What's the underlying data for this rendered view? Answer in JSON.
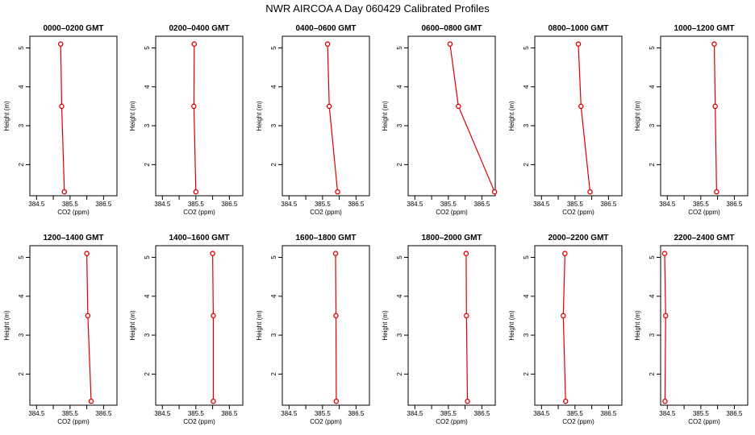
{
  "title": "NWR AIRCOA A  Day 060429  Calibrated Profiles",
  "chart_data": [
    {
      "type": "line",
      "title": "0000–0200 GMT",
      "xlabel": "CO2 (ppm)",
      "ylabel": "Height (m)",
      "xlim": [
        384.3,
        386.9
      ],
      "ylim": [
        1.2,
        5.3
      ],
      "x_ticks": [
        "384.5",
        "385.5",
        "386.5"
      ],
      "y_ticks": [
        "2",
        "3",
        "4",
        "5"
      ],
      "x": [
        385.22,
        385.25,
        385.33
      ],
      "y": [
        5.1,
        3.5,
        1.3
      ]
    },
    {
      "type": "line",
      "title": "0200–0400 GMT",
      "xlabel": "CO2 (ppm)",
      "ylabel": "Height (m)",
      "xlim": [
        384.3,
        386.9
      ],
      "ylim": [
        1.2,
        5.3
      ],
      "x_ticks": [
        "384.5",
        "385.5",
        "386.5"
      ],
      "y_ticks": [
        "2",
        "3",
        "4",
        "5"
      ],
      "x": [
        385.45,
        385.44,
        385.5
      ],
      "y": [
        5.1,
        3.5,
        1.3
      ]
    },
    {
      "type": "line",
      "title": "0400–0600 GMT",
      "xlabel": "CO2 (ppm)",
      "ylabel": "Height (m)",
      "xlim": [
        384.3,
        386.9
      ],
      "ylim": [
        1.2,
        5.3
      ],
      "x_ticks": [
        "384.5",
        "385.5",
        "386.5"
      ],
      "y_ticks": [
        "2",
        "3",
        "4",
        "5"
      ],
      "x": [
        385.65,
        385.7,
        385.95
      ],
      "y": [
        5.1,
        3.5,
        1.3
      ]
    },
    {
      "type": "line",
      "title": "0600–0800 GMT",
      "xlabel": "CO2 (ppm)",
      "ylabel": "Height (m)",
      "xlim": [
        384.3,
        386.9
      ],
      "ylim": [
        1.2,
        5.3
      ],
      "x_ticks": [
        "384.5",
        "385.5",
        "386.5"
      ],
      "y_ticks": [
        "2",
        "3",
        "4",
        "5"
      ],
      "x": [
        385.55,
        385.8,
        386.88
      ],
      "y": [
        5.1,
        3.5,
        1.3
      ]
    },
    {
      "type": "line",
      "title": "0800–1000 GMT",
      "xlabel": "CO2 (ppm)",
      "ylabel": "Height (m)",
      "xlim": [
        384.3,
        386.9
      ],
      "ylim": [
        1.2,
        5.3
      ],
      "x_ticks": [
        "384.5",
        "385.5",
        "386.5"
      ],
      "y_ticks": [
        "2",
        "3",
        "4",
        "5"
      ],
      "x": [
        385.6,
        385.68,
        385.95
      ],
      "y": [
        5.1,
        3.5,
        1.3
      ]
    },
    {
      "type": "line",
      "title": "1000–1200 GMT",
      "xlabel": "CO2 (ppm)",
      "ylabel": "Height (m)",
      "xlim": [
        384.3,
        386.9
      ],
      "ylim": [
        1.2,
        5.3
      ],
      "x_ticks": [
        "384.5",
        "385.5",
        "386.5"
      ],
      "y_ticks": [
        "2",
        "3",
        "4",
        "5"
      ],
      "x": [
        385.9,
        385.93,
        385.97
      ],
      "y": [
        5.1,
        3.5,
        1.3
      ]
    },
    {
      "type": "line",
      "title": "1200–1400 GMT",
      "xlabel": "CO2 (ppm)",
      "ylabel": "Height (m)",
      "xlim": [
        384.3,
        386.9
      ],
      "ylim": [
        1.2,
        5.3
      ],
      "x_ticks": [
        "384.5",
        "385.5",
        "386.5"
      ],
      "y_ticks": [
        "2",
        "3",
        "4",
        "5"
      ],
      "x": [
        386.0,
        386.03,
        386.13
      ],
      "y": [
        5.1,
        3.5,
        1.3
      ]
    },
    {
      "type": "line",
      "title": "1400–1600 GMT",
      "xlabel": "CO2 (ppm)",
      "ylabel": "Height (m)",
      "xlim": [
        384.3,
        386.9
      ],
      "ylim": [
        1.2,
        5.3
      ],
      "x_ticks": [
        "384.5",
        "385.5",
        "386.5"
      ],
      "y_ticks": [
        "2",
        "3",
        "4",
        "5"
      ],
      "x": [
        386.0,
        386.02,
        386.02
      ],
      "y": [
        5.1,
        3.5,
        1.3
      ]
    },
    {
      "type": "line",
      "title": "1600–1800 GMT",
      "xlabel": "CO2 (ppm)",
      "ylabel": "Height (m)",
      "xlim": [
        384.3,
        386.9
      ],
      "ylim": [
        1.2,
        5.3
      ],
      "x_ticks": [
        "384.5",
        "385.5",
        "386.5"
      ],
      "y_ticks": [
        "2",
        "3",
        "4",
        "5"
      ],
      "x": [
        385.89,
        385.9,
        385.91
      ],
      "y": [
        5.1,
        3.5,
        1.3
      ]
    },
    {
      "type": "line",
      "title": "1800–2000 GMT",
      "xlabel": "CO2 (ppm)",
      "ylabel": "Height (m)",
      "xlim": [
        384.3,
        386.9
      ],
      "ylim": [
        1.2,
        5.3
      ],
      "x_ticks": [
        "384.5",
        "385.5",
        "386.5"
      ],
      "y_ticks": [
        "2",
        "3",
        "4",
        "5"
      ],
      "x": [
        386.03,
        386.04,
        386.07
      ],
      "y": [
        5.1,
        3.5,
        1.3
      ]
    },
    {
      "type": "line",
      "title": "2000–2200 GMT",
      "xlabel": "CO2 (ppm)",
      "ylabel": "Height (m)",
      "xlim": [
        384.3,
        386.9
      ],
      "ylim": [
        1.2,
        5.3
      ],
      "x_ticks": [
        "384.5",
        "385.5",
        "386.5"
      ],
      "y_ticks": [
        "2",
        "3",
        "4",
        "5"
      ],
      "x": [
        385.2,
        385.15,
        385.22
      ],
      "y": [
        5.1,
        3.5,
        1.3
      ]
    },
    {
      "type": "line",
      "title": "2200–2400 GMT",
      "xlabel": "CO2 (ppm)",
      "ylabel": "Height (m)",
      "xlim": [
        384.3,
        386.9
      ],
      "ylim": [
        1.2,
        5.3
      ],
      "x_ticks": [
        "384.5",
        "385.5",
        "386.5"
      ],
      "y_ticks": [
        "2",
        "3",
        "4",
        "5"
      ],
      "x": [
        384.42,
        384.45,
        384.43
      ],
      "y": [
        5.1,
        3.5,
        1.3
      ]
    }
  ]
}
